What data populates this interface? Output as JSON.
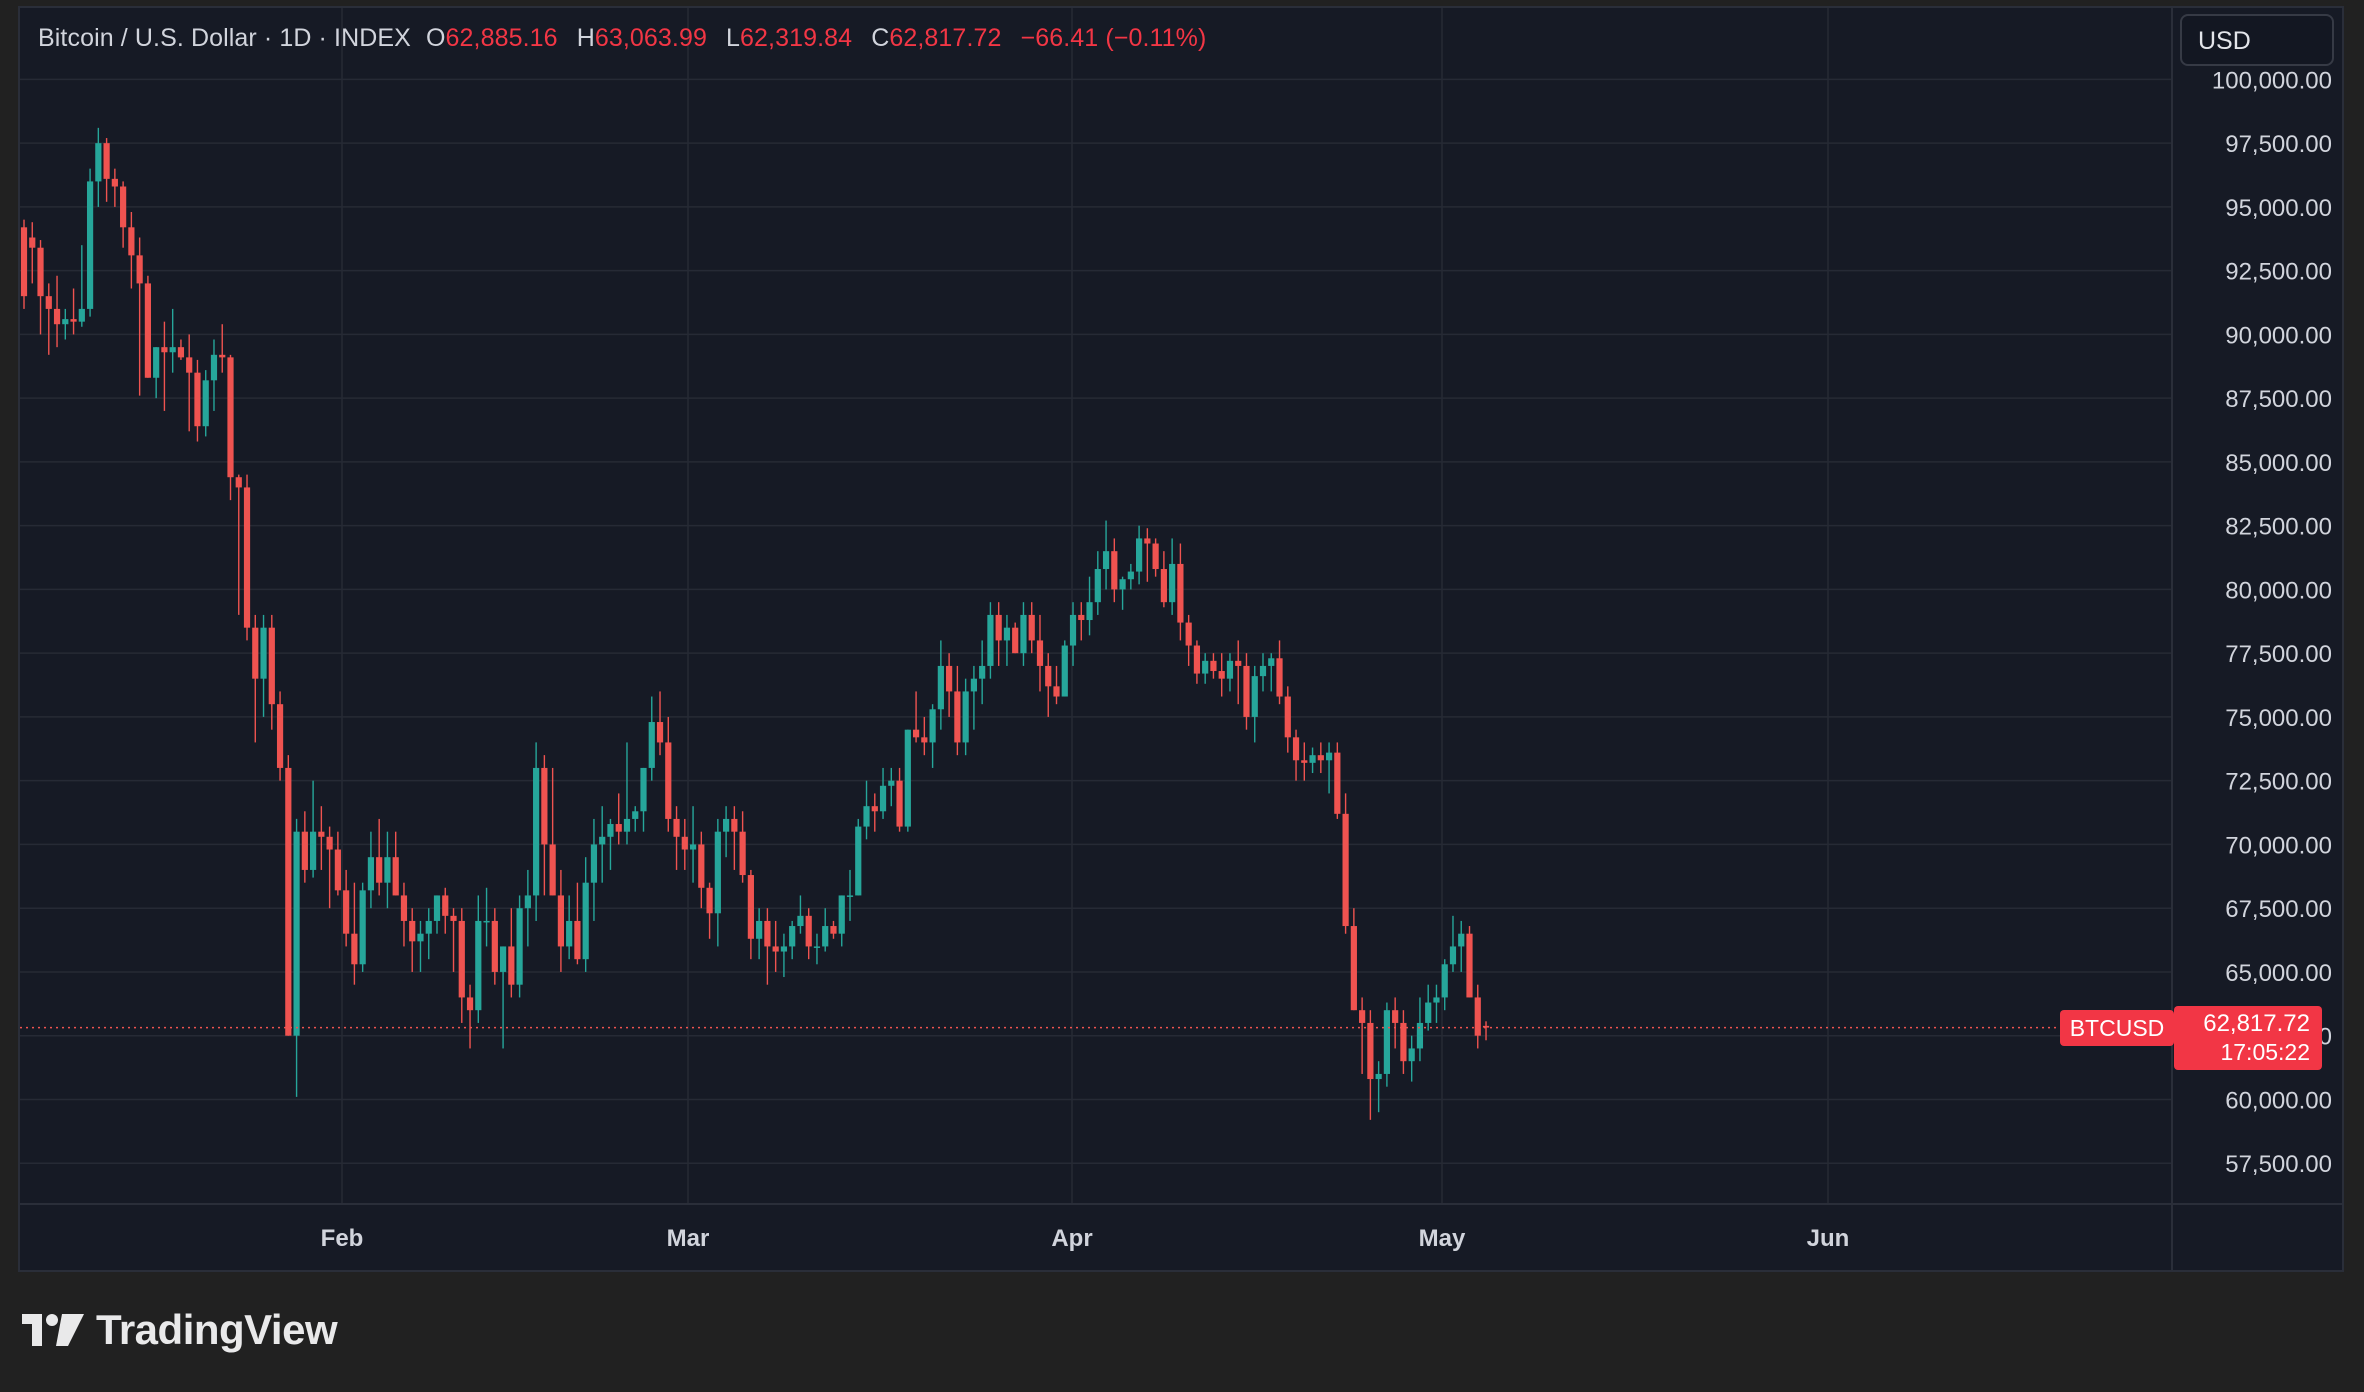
{
  "header": {
    "symbol": "Bitcoin / U.S. Dollar · 1D · INDEX",
    "open_label": "O",
    "open": "62,885.16",
    "high_label": "H",
    "high": "63,063.99",
    "low_label": "L",
    "low": "62,319.84",
    "close_label": "C",
    "close": "62,817.72",
    "change": "−66.41 (−0.11%)"
  },
  "currency_button": "USD",
  "price_tag": {
    "symbol": "BTCUSD",
    "price": "62,817.72",
    "countdown": "17:05:22"
  },
  "brand": {
    "name": "TradingView",
    "logo_icon": "tradingview-logo-icon"
  },
  "colors": {
    "up": "#26a69a",
    "down": "#ef5350",
    "background": "#161a25",
    "grid": "#262a35",
    "axis_text": "#d1d4dc",
    "page": "#212121"
  },
  "chart_data": {
    "type": "candlestick",
    "yaxis": {
      "ticks": [
        "57,500.00",
        "60,000.00",
        "62,500.00",
        "65,000.00",
        "67,500.00",
        "70,000.00",
        "72,500.00",
        "75,000.00",
        "77,500.00",
        "80,000.00",
        "82,500.00",
        "85,000.00",
        "87,500.00",
        "90,000.00",
        "92,500.00",
        "95,000.00",
        "97,500.00",
        "100,000.00"
      ],
      "range": [
        55900,
        102800
      ]
    },
    "xaxis": {
      "ticks": [
        "Feb",
        "Mar",
        "Apr",
        "May",
        "Jun"
      ]
    },
    "last_price": 62817.72,
    "candles": [
      {
        "o": 94200,
        "h": 94500,
        "l": 91000,
        "c": 91500
      },
      {
        "o": 93800,
        "h": 94400,
        "l": 92000,
        "c": 93400
      },
      {
        "o": 93400,
        "h": 93700,
        "l": 90000,
        "c": 91500
      },
      {
        "o": 91500,
        "h": 92000,
        "l": 89200,
        "c": 91000
      },
      {
        "o": 91000,
        "h": 92300,
        "l": 89500,
        "c": 90400
      },
      {
        "o": 90400,
        "h": 91000,
        "l": 89800,
        "c": 90600
      },
      {
        "o": 90600,
        "h": 91800,
        "l": 90000,
        "c": 90500
      },
      {
        "o": 90500,
        "h": 93500,
        "l": 90300,
        "c": 91000
      },
      {
        "o": 91000,
        "h": 96500,
        "l": 90700,
        "c": 96000
      },
      {
        "o": 96000,
        "h": 98100,
        "l": 95000,
        "c": 97500
      },
      {
        "o": 97500,
        "h": 97700,
        "l": 95200,
        "c": 96100
      },
      {
        "o": 96100,
        "h": 96500,
        "l": 95000,
        "c": 95800
      },
      {
        "o": 95800,
        "h": 96000,
        "l": 93400,
        "c": 94200
      },
      {
        "o": 94200,
        "h": 94800,
        "l": 91800,
        "c": 93100
      },
      {
        "o": 93100,
        "h": 93800,
        "l": 87600,
        "c": 92000
      },
      {
        "o": 92000,
        "h": 92300,
        "l": 88300,
        "c": 88300
      },
      {
        "o": 88300,
        "h": 89500,
        "l": 87500,
        "c": 89500
      },
      {
        "o": 89500,
        "h": 90500,
        "l": 87000,
        "c": 89300
      },
      {
        "o": 89300,
        "h": 91000,
        "l": 88500,
        "c": 89500
      },
      {
        "o": 89500,
        "h": 89800,
        "l": 89000,
        "c": 89100
      },
      {
        "o": 89100,
        "h": 90000,
        "l": 86200,
        "c": 88500
      },
      {
        "o": 88500,
        "h": 89000,
        "l": 85800,
        "c": 86400
      },
      {
        "o": 86400,
        "h": 88600,
        "l": 86000,
        "c": 88200
      },
      {
        "o": 88200,
        "h": 89800,
        "l": 87000,
        "c": 89200
      },
      {
        "o": 89200,
        "h": 90400,
        "l": 88500,
        "c": 89100
      },
      {
        "o": 89100,
        "h": 89200,
        "l": 83500,
        "c": 84400
      },
      {
        "o": 84400,
        "h": 84500,
        "l": 79000,
        "c": 84000
      },
      {
        "o": 84000,
        "h": 84500,
        "l": 78000,
        "c": 78500
      },
      {
        "o": 78500,
        "h": 79000,
        "l": 74000,
        "c": 76500
      },
      {
        "o": 76500,
        "h": 79000,
        "l": 75000,
        "c": 78500
      },
      {
        "o": 78500,
        "h": 79000,
        "l": 74500,
        "c": 75500
      },
      {
        "o": 75500,
        "h": 76000,
        "l": 72500,
        "c": 73000
      },
      {
        "o": 73000,
        "h": 73500,
        "l": 62500,
        "c": 62500
      },
      {
        "o": 62500,
        "h": 71000,
        "l": 60100,
        "c": 70500
      },
      {
        "o": 70500,
        "h": 71300,
        "l": 68500,
        "c": 69000
      },
      {
        "o": 69000,
        "h": 72500,
        "l": 68700,
        "c": 70500
      },
      {
        "o": 70500,
        "h": 71500,
        "l": 69000,
        "c": 70300
      },
      {
        "o": 70300,
        "h": 70700,
        "l": 67500,
        "c": 69800
      },
      {
        "o": 69800,
        "h": 70500,
        "l": 68000,
        "c": 68200
      },
      {
        "o": 68200,
        "h": 69000,
        "l": 66000,
        "c": 66500
      },
      {
        "o": 66500,
        "h": 68500,
        "l": 64500,
        "c": 65300
      },
      {
        "o": 65300,
        "h": 68500,
        "l": 65000,
        "c": 68200
      },
      {
        "o": 68200,
        "h": 70500,
        "l": 67500,
        "c": 69500
      },
      {
        "o": 69500,
        "h": 71000,
        "l": 68000,
        "c": 68500
      },
      {
        "o": 68500,
        "h": 70500,
        "l": 67500,
        "c": 69500
      },
      {
        "o": 69500,
        "h": 70500,
        "l": 68000,
        "c": 68000
      },
      {
        "o": 68000,
        "h": 68500,
        "l": 66000,
        "c": 67000
      },
      {
        "o": 67000,
        "h": 67500,
        "l": 65000,
        "c": 66200
      },
      {
        "o": 66200,
        "h": 67000,
        "l": 65000,
        "c": 66500
      },
      {
        "o": 66500,
        "h": 67500,
        "l": 65500,
        "c": 67000
      },
      {
        "o": 67000,
        "h": 68000,
        "l": 66500,
        "c": 68000
      },
      {
        "o": 68000,
        "h": 68300,
        "l": 66500,
        "c": 67200
      },
      {
        "o": 67200,
        "h": 67500,
        "l": 65000,
        "c": 67000
      },
      {
        "o": 67000,
        "h": 67500,
        "l": 63000,
        "c": 64000
      },
      {
        "o": 64000,
        "h": 64500,
        "l": 62000,
        "c": 63500
      },
      {
        "o": 63500,
        "h": 68000,
        "l": 63000,
        "c": 67000
      },
      {
        "o": 67000,
        "h": 68300,
        "l": 66000,
        "c": 67000
      },
      {
        "o": 67000,
        "h": 67500,
        "l": 64500,
        "c": 65000
      },
      {
        "o": 65000,
        "h": 66000,
        "l": 62000,
        "c": 66000
      },
      {
        "o": 66000,
        "h": 67500,
        "l": 64000,
        "c": 64500
      },
      {
        "o": 64500,
        "h": 68000,
        "l": 64000,
        "c": 67500
      },
      {
        "o": 67500,
        "h": 69000,
        "l": 66000,
        "c": 68000
      },
      {
        "o": 68000,
        "h": 74000,
        "l": 67000,
        "c": 73000
      },
      {
        "o": 73000,
        "h": 73500,
        "l": 68000,
        "c": 70000
      },
      {
        "o": 70000,
        "h": 73000,
        "l": 68000,
        "c": 68000
      },
      {
        "o": 68000,
        "h": 69000,
        "l": 65000,
        "c": 66000
      },
      {
        "o": 66000,
        "h": 68000,
        "l": 65500,
        "c": 67000
      },
      {
        "o": 67000,
        "h": 68500,
        "l": 65300,
        "c": 65500
      },
      {
        "o": 65500,
        "h": 69500,
        "l": 65000,
        "c": 68500
      },
      {
        "o": 68500,
        "h": 71000,
        "l": 67000,
        "c": 70000
      },
      {
        "o": 70000,
        "h": 71500,
        "l": 68500,
        "c": 70300
      },
      {
        "o": 70300,
        "h": 71000,
        "l": 69000,
        "c": 70800
      },
      {
        "o": 70800,
        "h": 72000,
        "l": 70000,
        "c": 70500
      },
      {
        "o": 70500,
        "h": 74000,
        "l": 70000,
        "c": 71000
      },
      {
        "o": 71000,
        "h": 71500,
        "l": 70500,
        "c": 71300
      },
      {
        "o": 71300,
        "h": 73000,
        "l": 70500,
        "c": 73000
      },
      {
        "o": 73000,
        "h": 75800,
        "l": 72500,
        "c": 74800
      },
      {
        "o": 74800,
        "h": 76000,
        "l": 73500,
        "c": 74000
      },
      {
        "o": 74000,
        "h": 75000,
        "l": 70500,
        "c": 71000
      },
      {
        "o": 71000,
        "h": 71500,
        "l": 69000,
        "c": 70300
      },
      {
        "o": 70300,
        "h": 71000,
        "l": 69000,
        "c": 69800
      },
      {
        "o": 69800,
        "h": 71500,
        "l": 68500,
        "c": 70000
      },
      {
        "o": 70000,
        "h": 70500,
        "l": 67500,
        "c": 68300
      },
      {
        "o": 68300,
        "h": 68500,
        "l": 66300,
        "c": 67300
      },
      {
        "o": 67300,
        "h": 71000,
        "l": 66000,
        "c": 70500
      },
      {
        "o": 70500,
        "h": 71500,
        "l": 69500,
        "c": 71000
      },
      {
        "o": 71000,
        "h": 71500,
        "l": 69000,
        "c": 70500
      },
      {
        "o": 70500,
        "h": 71300,
        "l": 68500,
        "c": 68800
      },
      {
        "o": 68800,
        "h": 69000,
        "l": 65500,
        "c": 66300
      },
      {
        "o": 66300,
        "h": 67500,
        "l": 65500,
        "c": 67000
      },
      {
        "o": 67000,
        "h": 67500,
        "l": 64500,
        "c": 66000
      },
      {
        "o": 66000,
        "h": 67000,
        "l": 65000,
        "c": 65800
      },
      {
        "o": 65800,
        "h": 66500,
        "l": 64800,
        "c": 66000
      },
      {
        "o": 66000,
        "h": 67000,
        "l": 65500,
        "c": 66800
      },
      {
        "o": 66800,
        "h": 68000,
        "l": 66500,
        "c": 67200
      },
      {
        "o": 67200,
        "h": 67500,
        "l": 65500,
        "c": 66000
      },
      {
        "o": 66000,
        "h": 66500,
        "l": 65300,
        "c": 66000
      },
      {
        "o": 66000,
        "h": 67500,
        "l": 65800,
        "c": 66800
      },
      {
        "o": 66800,
        "h": 67000,
        "l": 66300,
        "c": 66500
      },
      {
        "o": 66500,
        "h": 68000,
        "l": 66000,
        "c": 68000
      },
      {
        "o": 68000,
        "h": 69000,
        "l": 67000,
        "c": 68000
      },
      {
        "o": 68000,
        "h": 71000,
        "l": 68000,
        "c": 70700
      },
      {
        "o": 70700,
        "h": 72500,
        "l": 70200,
        "c": 71500
      },
      {
        "o": 71500,
        "h": 72000,
        "l": 70500,
        "c": 71300
      },
      {
        "o": 71300,
        "h": 73000,
        "l": 71000,
        "c": 72300
      },
      {
        "o": 72300,
        "h": 73000,
        "l": 71500,
        "c": 72500
      },
      {
        "o": 72500,
        "h": 73000,
        "l": 70500,
        "c": 70700
      },
      {
        "o": 70700,
        "h": 74500,
        "l": 70500,
        "c": 74500
      },
      {
        "o": 74500,
        "h": 76000,
        "l": 74000,
        "c": 74200
      },
      {
        "o": 74200,
        "h": 75000,
        "l": 73500,
        "c": 74000
      },
      {
        "o": 74000,
        "h": 75500,
        "l": 73000,
        "c": 75300
      },
      {
        "o": 75300,
        "h": 78000,
        "l": 74500,
        "c": 77000
      },
      {
        "o": 77000,
        "h": 77500,
        "l": 75000,
        "c": 76000
      },
      {
        "o": 76000,
        "h": 77000,
        "l": 73500,
        "c": 74000
      },
      {
        "o": 74000,
        "h": 76500,
        "l": 73500,
        "c": 76000
      },
      {
        "o": 76000,
        "h": 77000,
        "l": 74500,
        "c": 76500
      },
      {
        "o": 76500,
        "h": 78000,
        "l": 75500,
        "c": 77000
      },
      {
        "o": 77000,
        "h": 79500,
        "l": 76500,
        "c": 79000
      },
      {
        "o": 79000,
        "h": 79500,
        "l": 77000,
        "c": 78000
      },
      {
        "o": 78000,
        "h": 79000,
        "l": 77000,
        "c": 78500
      },
      {
        "o": 78500,
        "h": 78700,
        "l": 77500,
        "c": 77500
      },
      {
        "o": 77500,
        "h": 79500,
        "l": 77000,
        "c": 79000
      },
      {
        "o": 79000,
        "h": 79500,
        "l": 77500,
        "c": 78000
      },
      {
        "o": 78000,
        "h": 79000,
        "l": 76000,
        "c": 77000
      },
      {
        "o": 77000,
        "h": 77500,
        "l": 75000,
        "c": 76200
      },
      {
        "o": 76200,
        "h": 77000,
        "l": 75500,
        "c": 75800
      },
      {
        "o": 75800,
        "h": 78000,
        "l": 75800,
        "c": 77800
      },
      {
        "o": 77800,
        "h": 79500,
        "l": 77000,
        "c": 79000
      },
      {
        "o": 79000,
        "h": 79500,
        "l": 78000,
        "c": 78800
      },
      {
        "o": 78800,
        "h": 80500,
        "l": 78200,
        "c": 79500
      },
      {
        "o": 79500,
        "h": 81500,
        "l": 79000,
        "c": 80800
      },
      {
        "o": 80800,
        "h": 82700,
        "l": 80000,
        "c": 81500
      },
      {
        "o": 81500,
        "h": 82000,
        "l": 79500,
        "c": 80000
      },
      {
        "o": 80000,
        "h": 80500,
        "l": 79200,
        "c": 80400
      },
      {
        "o": 80400,
        "h": 81000,
        "l": 80000,
        "c": 80700
      },
      {
        "o": 80700,
        "h": 82500,
        "l": 80200,
        "c": 82000
      },
      {
        "o": 82000,
        "h": 82400,
        "l": 80300,
        "c": 81800
      },
      {
        "o": 81800,
        "h": 82000,
        "l": 80500,
        "c": 80800
      },
      {
        "o": 80800,
        "h": 81500,
        "l": 79300,
        "c": 79500
      },
      {
        "o": 79500,
        "h": 82000,
        "l": 79000,
        "c": 81000
      },
      {
        "o": 81000,
        "h": 81800,
        "l": 78000,
        "c": 78700
      },
      {
        "o": 78700,
        "h": 79000,
        "l": 77000,
        "c": 77800
      },
      {
        "o": 77800,
        "h": 78000,
        "l": 76300,
        "c": 76700
      },
      {
        "o": 76700,
        "h": 77500,
        "l": 76300,
        "c": 77200
      },
      {
        "o": 77200,
        "h": 77500,
        "l": 76500,
        "c": 76800
      },
      {
        "o": 76800,
        "h": 77500,
        "l": 75800,
        "c": 76500
      },
      {
        "o": 76500,
        "h": 77500,
        "l": 76000,
        "c": 77200
      },
      {
        "o": 77200,
        "h": 78000,
        "l": 75500,
        "c": 77000
      },
      {
        "o": 77000,
        "h": 77500,
        "l": 74500,
        "c": 75000
      },
      {
        "o": 75000,
        "h": 77000,
        "l": 74000,
        "c": 76600
      },
      {
        "o": 76600,
        "h": 77500,
        "l": 76000,
        "c": 77000
      },
      {
        "o": 77000,
        "h": 77500,
        "l": 76000,
        "c": 77300
      },
      {
        "o": 77300,
        "h": 78000,
        "l": 75500,
        "c": 75800
      },
      {
        "o": 75800,
        "h": 76200,
        "l": 73600,
        "c": 74200
      },
      {
        "o": 74200,
        "h": 74500,
        "l": 72500,
        "c": 73300
      },
      {
        "o": 73300,
        "h": 74000,
        "l": 72500,
        "c": 73200
      },
      {
        "o": 73200,
        "h": 73800,
        "l": 72800,
        "c": 73500
      },
      {
        "o": 73500,
        "h": 74000,
        "l": 72800,
        "c": 73300
      },
      {
        "o": 73300,
        "h": 74000,
        "l": 72000,
        "c": 73600
      },
      {
        "o": 73600,
        "h": 74000,
        "l": 71000,
        "c": 71200
      },
      {
        "o": 71200,
        "h": 72000,
        "l": 66500,
        "c": 66800
      },
      {
        "o": 66800,
        "h": 67500,
        "l": 63500,
        "c": 63500
      },
      {
        "o": 63500,
        "h": 64000,
        "l": 61000,
        "c": 63000
      },
      {
        "o": 63000,
        "h": 63500,
        "l": 59200,
        "c": 60800
      },
      {
        "o": 60800,
        "h": 61500,
        "l": 59500,
        "c": 61000
      },
      {
        "o": 61000,
        "h": 63800,
        "l": 60500,
        "c": 63500
      },
      {
        "o": 63500,
        "h": 64000,
        "l": 62000,
        "c": 63000
      },
      {
        "o": 63000,
        "h": 63500,
        "l": 61000,
        "c": 61500
      },
      {
        "o": 61500,
        "h": 62500,
        "l": 60700,
        "c": 62000
      },
      {
        "o": 62000,
        "h": 64000,
        "l": 61500,
        "c": 63000
      },
      {
        "o": 63000,
        "h": 64500,
        "l": 62700,
        "c": 63800
      },
      {
        "o": 63800,
        "h": 64500,
        "l": 63000,
        "c": 64000
      },
      {
        "o": 64000,
        "h": 65500,
        "l": 63500,
        "c": 65300
      },
      {
        "o": 65300,
        "h": 67200,
        "l": 65000,
        "c": 66000
      },
      {
        "o": 66000,
        "h": 67000,
        "l": 65000,
        "c": 66500
      },
      {
        "o": 66500,
        "h": 66800,
        "l": 64000,
        "c": 64000
      },
      {
        "o": 64000,
        "h": 64500,
        "l": 62000,
        "c": 62500
      },
      {
        "o": 62885.16,
        "h": 63063.99,
        "l": 62319.84,
        "c": 62817.72
      }
    ]
  }
}
